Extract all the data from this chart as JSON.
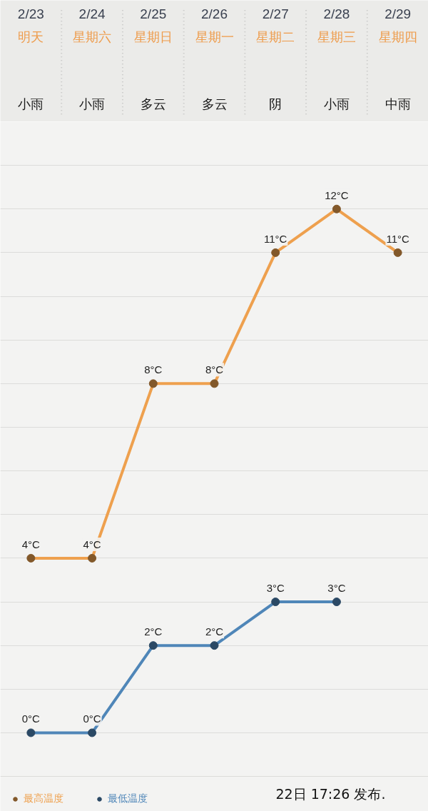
{
  "chart_data": {
    "type": "line",
    "categories": [
      "2/23",
      "2/24",
      "2/25",
      "2/26",
      "2/27",
      "2/28",
      "2/29"
    ],
    "series": [
      {
        "name": "最高温度",
        "color": "#eea04e",
        "values": [
          4,
          4,
          8,
          8,
          11,
          12,
          11
        ],
        "value_labels": [
          "4°C",
          "4°C",
          "8°C",
          "8°C",
          "11°C",
          "12°C",
          "11°C"
        ]
      },
      {
        "name": "最低温度",
        "color": "#4f86b8",
        "values": [
          0,
          0,
          2,
          2,
          3,
          3,
          null
        ],
        "value_labels": [
          "0°C",
          "0°C",
          "2°C",
          "2°C",
          "3°C",
          "3°C",
          null
        ]
      }
    ],
    "ylim": [
      -1.8,
      14
    ],
    "yticks": [
      {
        "value": -1,
        "label": null
      },
      {
        "value": 0,
        "label": null
      },
      {
        "value": 1,
        "label": null
      },
      {
        "value": 2,
        "label": null
      },
      {
        "value": 3,
        "label": null
      },
      {
        "value": 4,
        "label": null
      },
      {
        "value": 5,
        "label": null
      },
      {
        "value": 6,
        "label": null
      },
      {
        "value": 7,
        "label": null
      },
      {
        "value": 8,
        "label": null
      },
      {
        "value": 9,
        "label": null
      },
      {
        "value": 10,
        "label": null
      },
      {
        "value": 11,
        "label": null
      },
      {
        "value": 12,
        "label": null
      },
      {
        "value": 13,
        "label": null
      }
    ],
    "grid": "y",
    "tick_labels": "x",
    "marker": "circle",
    "line_style": "solid",
    "legend": "bottom left",
    "annotations": [
      "明天",
      "星期六",
      "星期日",
      "星期一",
      "星期二",
      "星期三",
      "星期四",
      "小雨",
      "小雨",
      "多云",
      "多云",
      "阴",
      "小雨",
      "中雨",
      "22日 17:26 发布."
    ]
  }
}
